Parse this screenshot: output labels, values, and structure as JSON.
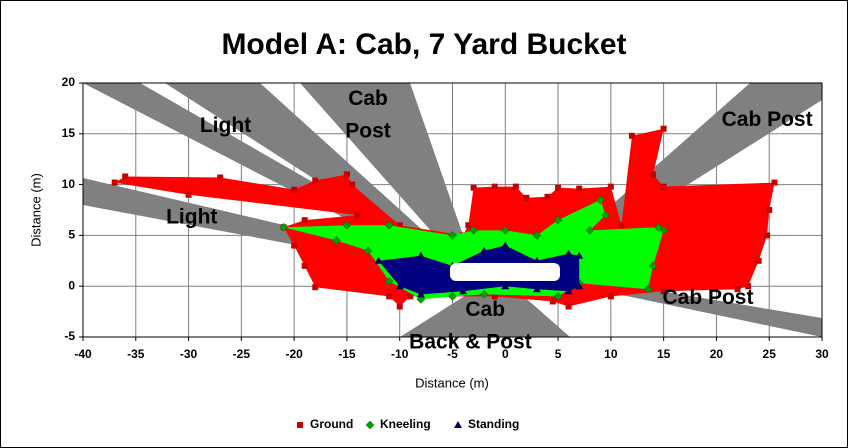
{
  "chart_data": {
    "type": "polygon",
    "title": "Model A: Cab, 7 Yard Bucket",
    "xlabel": "Distance (m)",
    "ylabel": "Distance (m)",
    "xlim": [
      -40,
      30
    ],
    "ylim": [
      -5,
      20
    ],
    "xticks": [
      -40,
      -35,
      -30,
      -25,
      -20,
      -15,
      -10,
      -5,
      0,
      5,
      10,
      15,
      20,
      25,
      30
    ],
    "yticks": [
      -5,
      0,
      5,
      10,
      15,
      20
    ],
    "grid": true,
    "legend": "bottom",
    "series": [
      {
        "name": "Ground",
        "color": "#ff0000",
        "marker_color": "#c80000",
        "marker": "square",
        "x": [
          -37,
          -36,
          -27,
          -20,
          -18,
          -15,
          -14.5,
          -10,
          -4,
          -3.5,
          -3,
          -1,
          1,
          2,
          4,
          5,
          7,
          10,
          11,
          12,
          15,
          14,
          15,
          25.5,
          25,
          24.8,
          24,
          23,
          22,
          15,
          10,
          6,
          4.5,
          -1,
          -9,
          -10,
          -11,
          -18,
          -19,
          -20,
          -21,
          -19,
          -14,
          -30
        ],
        "y": [
          10.2,
          10.8,
          10.7,
          9.5,
          10.4,
          11,
          10,
          6,
          5,
          6,
          9.7,
          9.8,
          9.8,
          8.7,
          8.8,
          9.7,
          9.6,
          9.8,
          6,
          14.8,
          15.5,
          11,
          9.8,
          10.2,
          7.5,
          5,
          2.5,
          0,
          -0.3,
          -0.5,
          -1,
          -2,
          -1.5,
          -1,
          -1,
          -2,
          -1,
          -0.1,
          2,
          4,
          5.8,
          6.5,
          7,
          9
        ]
      },
      {
        "name": "Kneeling",
        "color": "#00ff00",
        "marker_color": "#00a000",
        "marker": "diamond",
        "x": [
          -21,
          -15,
          -11,
          -5,
          -3,
          0,
          3,
          5,
          9,
          9.5,
          8,
          14.5,
          15,
          14,
          13.5,
          7,
          5,
          -2,
          -5,
          -8,
          -11,
          -13,
          -16
        ],
        "y": [
          5.8,
          6,
          6,
          5,
          5.5,
          5.5,
          5,
          6.5,
          8.5,
          7,
          5.5,
          5.8,
          5.5,
          2,
          -0.3,
          0.3,
          -1,
          -0.8,
          -1,
          -1.3,
          0.5,
          3.5,
          4.5
        ]
      },
      {
        "name": "Standing",
        "color": "#000080",
        "marker_color": "#000060",
        "marker": "triangle",
        "x": [
          -12,
          -8,
          -5,
          -2,
          0,
          3,
          6,
          7,
          7,
          6,
          3,
          0,
          -4,
          -8,
          -10
        ],
        "y": [
          2.5,
          3,
          2,
          3.5,
          4,
          2.5,
          3.2,
          3,
          0,
          -0.5,
          -0.3,
          0,
          -0.5,
          -0.8,
          0
        ]
      }
    ],
    "annotations": [
      {
        "text": "Light",
        "x": -26.5,
        "y": 15.7
      },
      {
        "text": "Light",
        "x": -29.7,
        "y": 6.7
      },
      {
        "text": "Cab",
        "x": -13,
        "y": 18.4
      },
      {
        "text": "Post",
        "x": -13,
        "y": 15.2
      },
      {
        "text": "Cab Post",
        "x": 24.8,
        "y": 16.3
      },
      {
        "text": "Cab Post",
        "x": 19.2,
        "y": -1.2
      },
      {
        "text": "Cab",
        "x": -1.9,
        "y": -2.4
      },
      {
        "text": "Back & Post",
        "x": -3.3,
        "y": -5.6
      }
    ]
  }
}
